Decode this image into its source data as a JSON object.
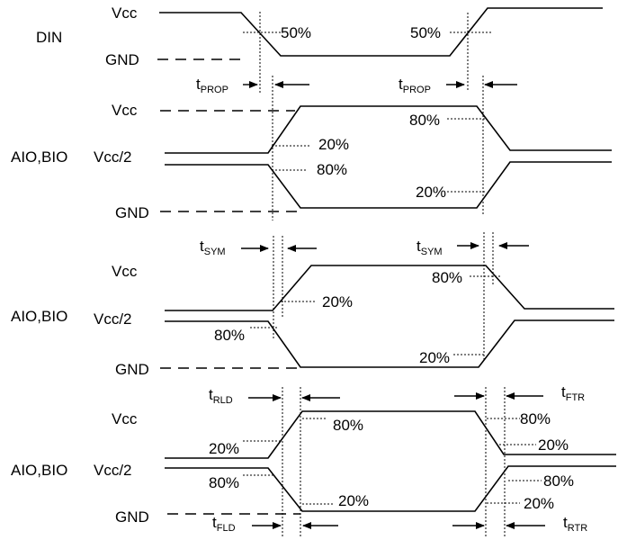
{
  "signals": {
    "din": "DIN",
    "aio_bio_1": "AIO,BIO",
    "aio_bio_2": "AIO,BIO",
    "aio_bio_3": "AIO,BIO"
  },
  "levels": {
    "vcc": "Vcc",
    "vcc_half": "Vcc/2",
    "gnd": "GND"
  },
  "percentages": {
    "p50": "50%",
    "p20": "20%",
    "p80": "80%"
  },
  "timing": {
    "t": "t",
    "prop": "PROP",
    "sym": "SYM",
    "rld": "RLD",
    "fld": "FLD",
    "ftr": "FTR",
    "rtr": "RTR"
  }
}
